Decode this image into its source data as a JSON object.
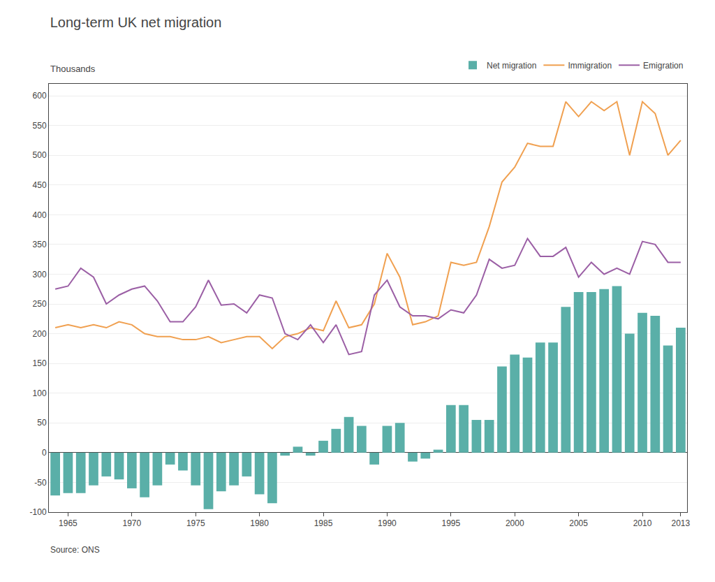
{
  "chart_data": {
    "type": "bar",
    "title": "Long-term UK net migration",
    "ylabel": "Thousands",
    "annotations": [
      "Source: ONS"
    ],
    "x": [
      1964,
      1965,
      1966,
      1967,
      1968,
      1969,
      1970,
      1971,
      1972,
      1973,
      1974,
      1975,
      1976,
      1977,
      1978,
      1979,
      1980,
      1981,
      1982,
      1983,
      1984,
      1985,
      1986,
      1987,
      1988,
      1989,
      1990,
      1991,
      1992,
      1993,
      1994,
      1995,
      1996,
      1997,
      1998,
      1999,
      2000,
      2001,
      2002,
      2003,
      2004,
      2005,
      2006,
      2007,
      2008,
      2009,
      2010,
      2011,
      2012,
      2013
    ],
    "series": [
      {
        "name": "Net migration",
        "type": "bar",
        "color": "#5aafa8",
        "values": [
          -72,
          -68,
          -68,
          -55,
          -40,
          -45,
          -60,
          -75,
          -55,
          -20,
          -30,
          -55,
          -95,
          -65,
          -55,
          -40,
          -70,
          -85,
          -5,
          10,
          -5,
          20,
          40,
          60,
          45,
          -20,
          45,
          50,
          -15,
          -10,
          5,
          80,
          80,
          55,
          55,
          145,
          165,
          160,
          185,
          185,
          245,
          270,
          270,
          275,
          280,
          200,
          235,
          230,
          180,
          210
        ]
      },
      {
        "name": "Immigration",
        "type": "line",
        "color": "#f0a050",
        "values": [
          210,
          215,
          210,
          215,
          210,
          220,
          215,
          200,
          195,
          195,
          190,
          190,
          195,
          185,
          190,
          195,
          195,
          175,
          195,
          200,
          210,
          205,
          255,
          210,
          215,
          250,
          335,
          295,
          215,
          220,
          230,
          320,
          315,
          320,
          380,
          455,
          480,
          520,
          515,
          515,
          590,
          565,
          590,
          575,
          590,
          500,
          590,
          570,
          500,
          525
        ]
      },
      {
        "name": "Emigration",
        "type": "line",
        "color": "#9b5fa5",
        "values": [
          275,
          280,
          310,
          295,
          250,
          265,
          275,
          280,
          255,
          220,
          220,
          245,
          290,
          248,
          250,
          235,
          265,
          260,
          200,
          190,
          215,
          185,
          215,
          165,
          170,
          265,
          290,
          245,
          230,
          230,
          225,
          240,
          235,
          265,
          325,
          310,
          315,
          360,
          330,
          330,
          345,
          295,
          320,
          300,
          310,
          300,
          355,
          350,
          320,
          320
        ]
      }
    ],
    "xlim": [
      1963.5,
      2013.5
    ],
    "xticks": [
      1965,
      1970,
      1975,
      1980,
      1985,
      1990,
      1995,
      2000,
      2005,
      2010,
      2013
    ],
    "ylim": [
      -100,
      620
    ],
    "yticks": [
      -100,
      -50,
      0,
      50,
      100,
      150,
      200,
      250,
      300,
      350,
      400,
      450,
      500,
      550,
      600
    ],
    "grid": true,
    "legend": "top"
  }
}
